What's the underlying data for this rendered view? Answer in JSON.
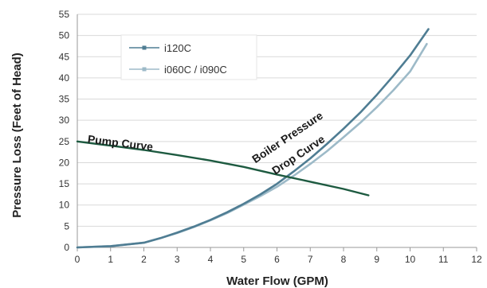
{
  "chart_data": {
    "type": "line",
    "xlabel": "Water Flow (GPM)",
    "ylabel": "Pressure Loss (Feet of Head)",
    "xlim": [
      0,
      12
    ],
    "ylim": [
      0,
      55
    ],
    "xticks": [
      "0",
      "1",
      "2",
      "3",
      "4",
      "5",
      "6",
      "7",
      "8",
      "9",
      "10",
      "11",
      "12"
    ],
    "yticks": [
      "0",
      "5",
      "10",
      "15",
      "20",
      "25",
      "30",
      "35",
      "40",
      "45",
      "50",
      "55"
    ],
    "grid": "horizontal",
    "legend": "top-left",
    "colors": {
      "i120C": "#4f7d93",
      "i060C": "#9dbac8",
      "pump": "#1d5a40",
      "grid": "#d9d9d9"
    },
    "series": [
      {
        "name": "i120C",
        "x": [
          0,
          1,
          2,
          2.5,
          3,
          3.5,
          4,
          4.5,
          5,
          5.5,
          6,
          6.5,
          7,
          7.5,
          8,
          8.5,
          9,
          9.5,
          10,
          10.55
        ],
        "y": [
          0,
          0.3,
          1.1,
          2.2,
          3.5,
          4.9,
          6.5,
          8.3,
          10.3,
          12.5,
          15,
          17.9,
          21,
          24.4,
          28,
          31.8,
          36,
          40.5,
          45.3,
          51.5
        ]
      },
      {
        "name": "i060C / i090C",
        "x": [
          0,
          1,
          2,
          2.5,
          3,
          3.5,
          4,
          4.5,
          5,
          5.5,
          6,
          6.5,
          7,
          7.5,
          8,
          8.5,
          9,
          9.5,
          10,
          10.5
        ],
        "y": [
          0,
          0.3,
          1.1,
          2.2,
          3.4,
          4.8,
          6.4,
          8.1,
          10.1,
          12.1,
          14.3,
          16.9,
          19.7,
          22.7,
          26,
          29.4,
          33.1,
          37.1,
          41.5,
          48
        ]
      },
      {
        "name": "Pump Curve",
        "x": [
          0,
          1,
          2,
          3,
          4,
          5,
          6,
          7,
          8,
          8.75
        ],
        "y": [
          25,
          24,
          23,
          21.8,
          20.5,
          19,
          17.2,
          15.5,
          13.8,
          12.3
        ]
      }
    ],
    "legend_entries": [
      "i120C",
      "i060C / i090C"
    ],
    "annotations": [
      {
        "text": "Pump Curve",
        "x": 0.3,
        "y": 24.7,
        "angle_deg": 7
      },
      {
        "text": "Boiler Pressure",
        "x": 5.35,
        "y": 19.8,
        "angle_deg": -34
      },
      {
        "text": "Drop Curve",
        "x": 5.95,
        "y": 17.1,
        "angle_deg": -34
      }
    ]
  }
}
